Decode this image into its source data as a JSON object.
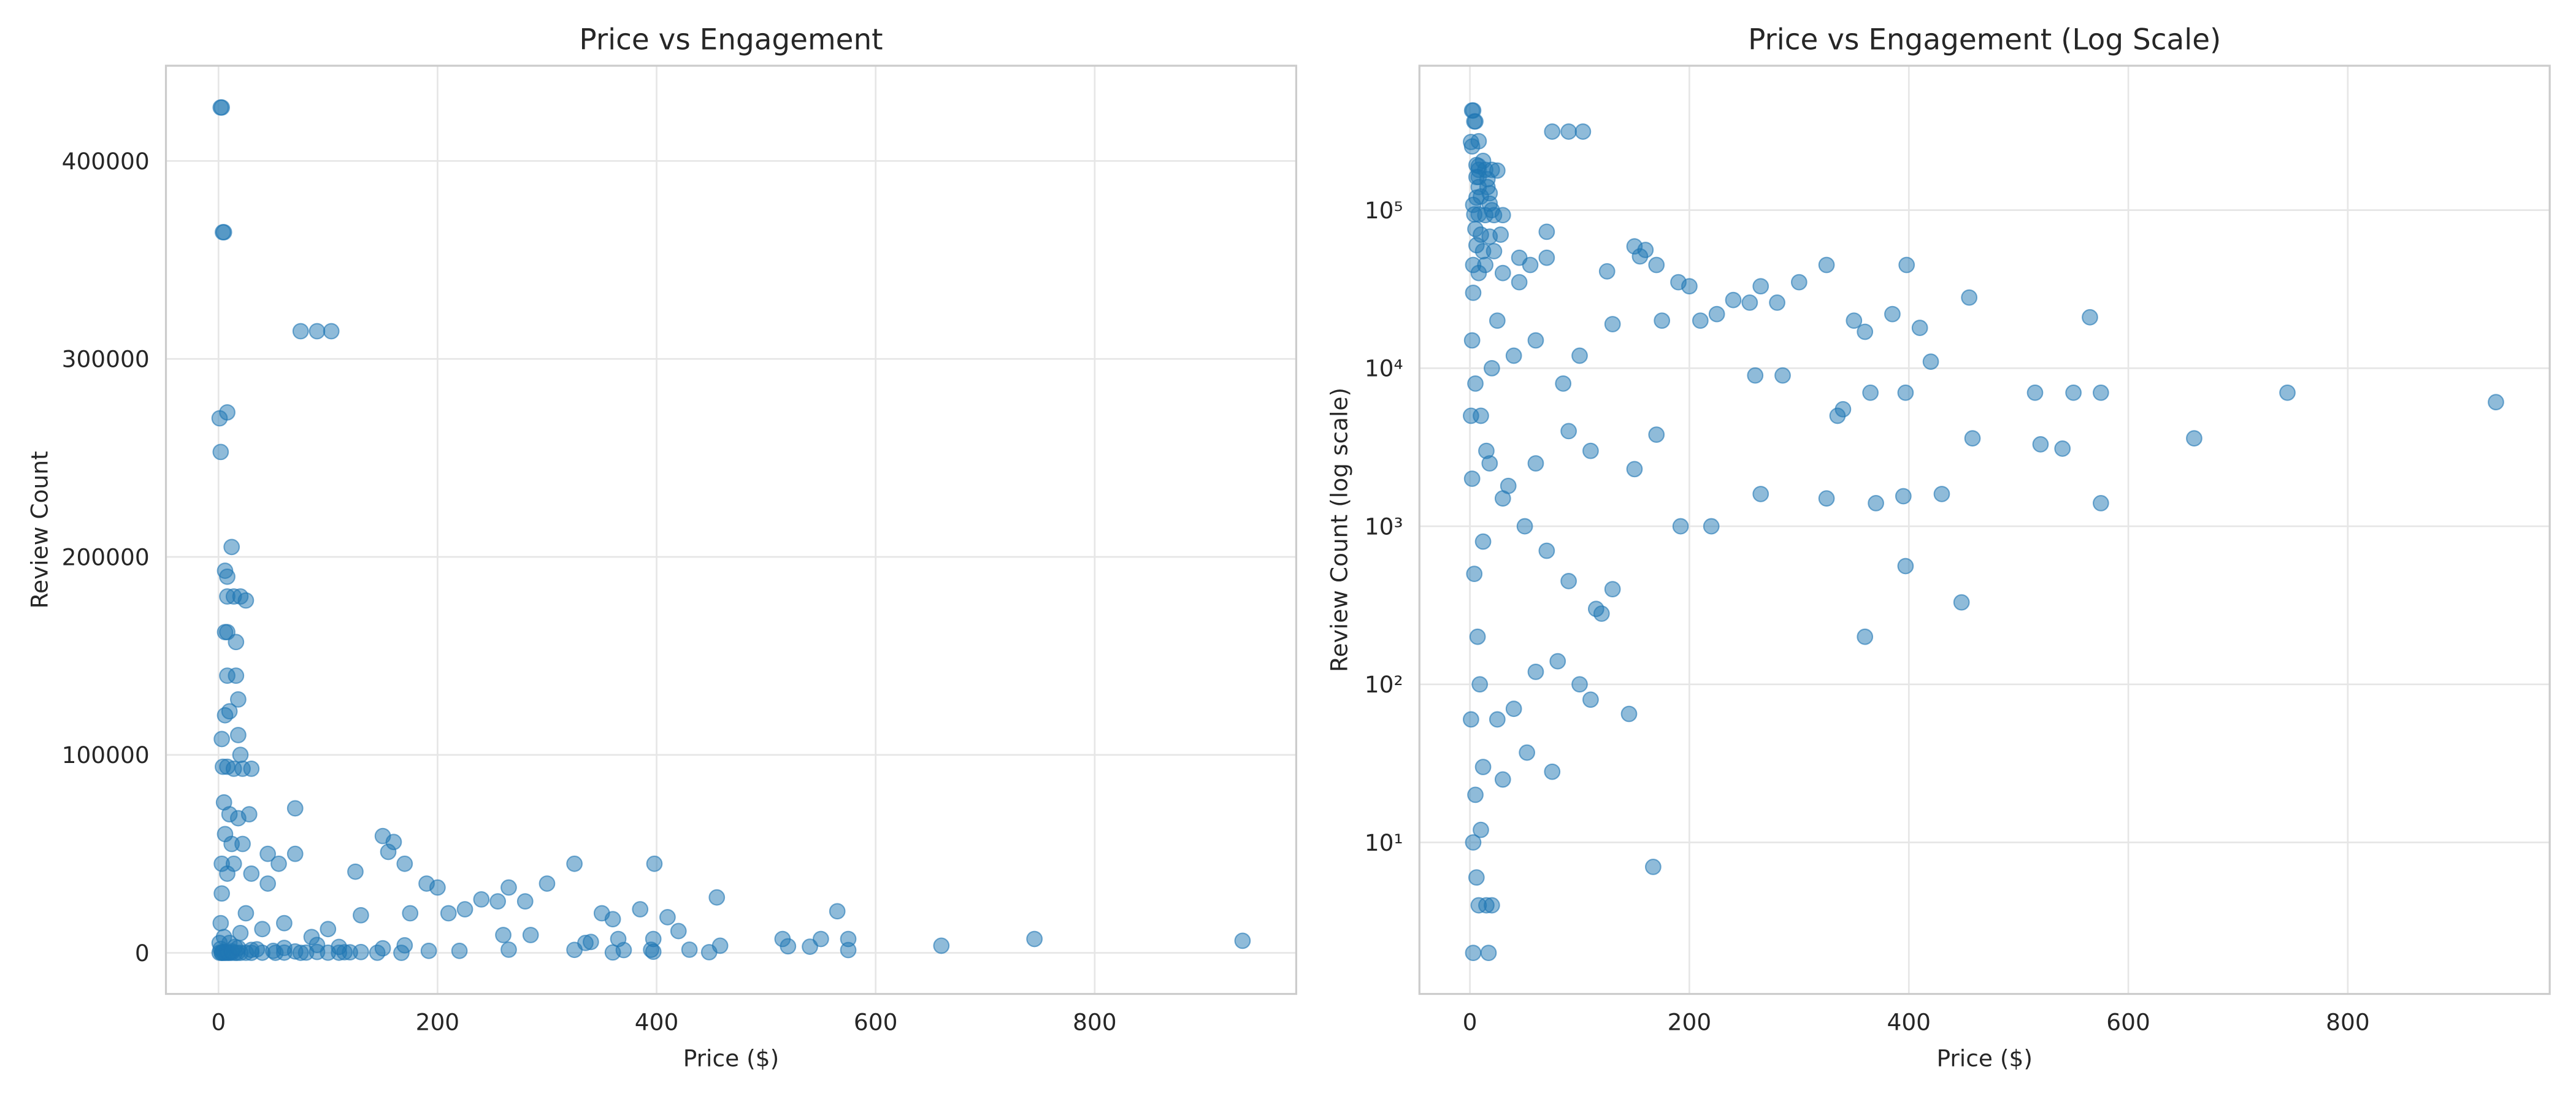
{
  "chart_data": [
    {
      "type": "scatter",
      "title": "Price vs Engagement",
      "x_label": "Price ($)",
      "y_label": "Review Count",
      "x": [
        2,
        3,
        4,
        5,
        75,
        90,
        103,
        1,
        2,
        8,
        12,
        6,
        8,
        8,
        14,
        20,
        25,
        6,
        8,
        16,
        8,
        16,
        18,
        6,
        10,
        18,
        3,
        20,
        4,
        8,
        14,
        22,
        30,
        5,
        10,
        18,
        28,
        70,
        12,
        22,
        45,
        55,
        70,
        125,
        150,
        155,
        160,
        170,
        190,
        200,
        225,
        240,
        255,
        265,
        280,
        300,
        325,
        350,
        360,
        385,
        398,
        410,
        420,
        455,
        515,
        550,
        565,
        575,
        660,
        745,
        935,
        575,
        360,
        448,
        397,
        430,
        395,
        370,
        325,
        265,
        220,
        192,
        167,
        145,
        110,
        100,
        75,
        52,
        30,
        20,
        15,
        3,
        17,
        8,
        6,
        3,
        10,
        5,
        12,
        25,
        40,
        60,
        80,
        120,
        130,
        115,
        90,
        70,
        50,
        30,
        15,
        10,
        5,
        20,
        40,
        60,
        85,
        100,
        130,
        175,
        210,
        260,
        285,
        335,
        340,
        365,
        397,
        458,
        520,
        540,
        170,
        150,
        110,
        90,
        60,
        35,
        25,
        8,
        3,
        2,
        1,
        2,
        4,
        7,
        1,
        9,
        12,
        18,
        6,
        3,
        14,
        30,
        45
      ],
      "y": [
        427000,
        427000,
        364000,
        364000,
        314000,
        314000,
        314000,
        270000,
        253000,
        273000,
        205000,
        193000,
        190000,
        180000,
        180000,
        180000,
        178000,
        162000,
        162000,
        157000,
        140000,
        140000,
        128000,
        120000,
        122000,
        110000,
        108000,
        100000,
        94000,
        94000,
        93000,
        93000,
        93000,
        76000,
        70000,
        68000,
        70000,
        73000,
        55000,
        55000,
        50000,
        45000,
        50000,
        41000,
        59000,
        51000,
        56000,
        45000,
        35000,
        33000,
        22000,
        27000,
        26000,
        33000,
        26000,
        35000,
        45000,
        20000,
        17000,
        22000,
        45000,
        18000,
        11000,
        28000,
        7000,
        7000,
        21000,
        7000,
        3600,
        7000,
        6100,
        1400,
        200,
        330,
        560,
        1600,
        1550,
        1400,
        1500,
        1600,
        1000,
        1000,
        7,
        65,
        80,
        100,
        28,
        37,
        25,
        4,
        4,
        2,
        2,
        4,
        6,
        10,
        12,
        20,
        30,
        60,
        70,
        120,
        140,
        280,
        400,
        300,
        450,
        700,
        1000,
        1500,
        3000,
        5000,
        8000,
        10000,
        12000,
        15000,
        8000,
        12000,
        19000,
        20000,
        20000,
        9000,
        9000,
        5000,
        5500,
        7000,
        7000,
        3600,
        3300,
        3100,
        3800,
        2300,
        3000,
        4000,
        2500,
        1800,
        20000,
        40000,
        30000,
        15000,
        5000,
        2000,
        500,
        200,
        60,
        100,
        800,
        2500,
        60000,
        45000,
        45000,
        40000,
        35000
      ],
      "color": "#1f77b4",
      "xlim": [
        -48,
        984
      ],
      "ylim": [
        -20750,
        448100
      ],
      "xticks": [
        0,
        200,
        400,
        600,
        800
      ],
      "yticks": [
        0,
        100000,
        200000,
        300000,
        400000
      ],
      "grid": true
    },
    {
      "type": "scatter",
      "title": "Price vs Engagement (Log Scale)",
      "x_label": "Price ($)",
      "y_label": "Review Count (log scale)",
      "x": [
        2,
        3,
        4,
        5,
        75,
        90,
        103,
        1,
        2,
        8,
        12,
        6,
        8,
        8,
        14,
        20,
        25,
        6,
        8,
        16,
        8,
        16,
        18,
        6,
        10,
        18,
        3,
        20,
        4,
        8,
        14,
        22,
        30,
        5,
        10,
        18,
        28,
        70,
        12,
        22,
        45,
        55,
        70,
        125,
        150,
        155,
        160,
        170,
        190,
        200,
        225,
        240,
        255,
        265,
        280,
        300,
        325,
        350,
        360,
        385,
        398,
        410,
        420,
        455,
        515,
        550,
        565,
        575,
        660,
        745,
        935,
        575,
        360,
        448,
        397,
        430,
        395,
        370,
        325,
        265,
        220,
        192,
        167,
        145,
        110,
        100,
        75,
        52,
        30,
        20,
        15,
        3,
        17,
        8,
        6,
        3,
        10,
        5,
        12,
        25,
        40,
        60,
        80,
        120,
        130,
        115,
        90,
        70,
        50,
        30,
        15,
        10,
        5,
        20,
        40,
        60,
        85,
        100,
        130,
        175,
        210,
        260,
        285,
        335,
        340,
        365,
        397,
        458,
        520,
        540,
        170,
        150,
        110,
        90,
        60,
        35,
        25,
        8,
        3,
        2,
        1,
        2,
        4,
        7,
        1,
        9,
        12,
        18,
        6,
        3,
        14,
        30,
        45
      ],
      "y": [
        427000,
        427000,
        364000,
        364000,
        314000,
        314000,
        314000,
        270000,
        253000,
        273000,
        205000,
        193000,
        190000,
        180000,
        180000,
        180000,
        178000,
        162000,
        162000,
        157000,
        140000,
        140000,
        128000,
        120000,
        122000,
        110000,
        108000,
        100000,
        94000,
        94000,
        93000,
        93000,
        93000,
        76000,
        70000,
        68000,
        70000,
        73000,
        55000,
        55000,
        50000,
        45000,
        50000,
        41000,
        59000,
        51000,
        56000,
        45000,
        35000,
        33000,
        22000,
        27000,
        26000,
        33000,
        26000,
        35000,
        45000,
        20000,
        17000,
        22000,
        45000,
        18000,
        11000,
        28000,
        7000,
        7000,
        21000,
        7000,
        3600,
        7000,
        6100,
        1400,
        200,
        330,
        560,
        1600,
        1550,
        1400,
        1500,
        1600,
        1000,
        1000,
        7,
        65,
        80,
        100,
        28,
        37,
        25,
        4,
        4,
        2,
        2,
        4,
        6,
        10,
        12,
        20,
        30,
        60,
        70,
        120,
        140,
        280,
        400,
        300,
        450,
        700,
        1000,
        1500,
        3000,
        5000,
        8000,
        10000,
        12000,
        15000,
        8000,
        12000,
        19000,
        20000,
        20000,
        9000,
        9000,
        5000,
        5500,
        7000,
        7000,
        3600,
        3300,
        3100,
        3800,
        2300,
        3000,
        4000,
        2500,
        1800,
        20000,
        40000,
        30000,
        15000,
        5000,
        2000,
        500,
        200,
        60,
        100,
        800,
        2500,
        60000,
        45000,
        45000,
        40000,
        35000
      ],
      "color": "#1f77b4",
      "xlim": [
        -46,
        984
      ],
      "ylim": [
        1.1,
        820000
      ],
      "y_scale": "log",
      "xticks": [
        0,
        200,
        400,
        600,
        800
      ],
      "yticks": [
        {
          "value": 10,
          "label": "10¹"
        },
        {
          "value": 100,
          "label": "10²"
        },
        {
          "value": 1000,
          "label": "10³"
        },
        {
          "value": 10000,
          "label": "10⁴"
        },
        {
          "value": 100000,
          "label": "10⁵"
        }
      ],
      "grid": true
    }
  ]
}
